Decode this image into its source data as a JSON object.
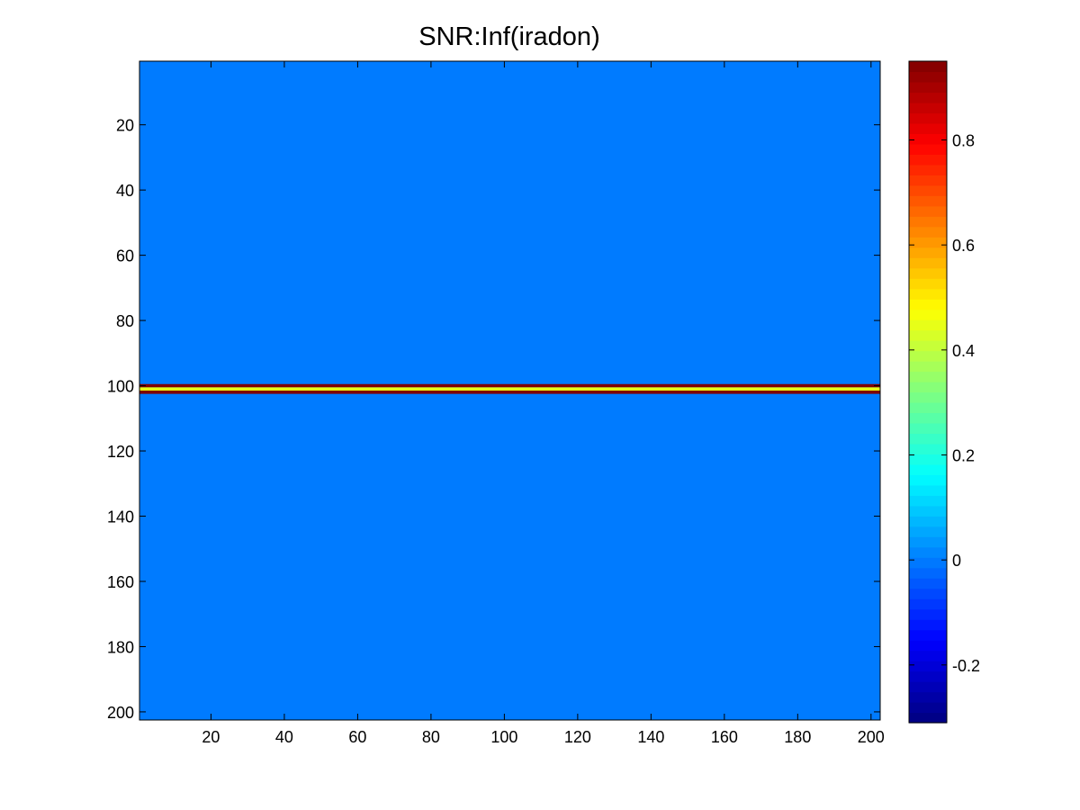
{
  "chart_data": {
    "type": "heatmap",
    "title": "SNR:Inf(iradon)",
    "xlabel": "",
    "ylabel": "",
    "xlim": [
      0.5,
      202.5
    ],
    "ylim": [
      202.5,
      0.5
    ],
    "x_ticks": [
      20,
      40,
      60,
      80,
      100,
      120,
      140,
      160,
      180,
      200
    ],
    "y_ticks": [
      20,
      40,
      60,
      80,
      100,
      120,
      140,
      160,
      180,
      200
    ],
    "grid": false,
    "background_value": 0.0,
    "bright_rows": [
      {
        "row": 100,
        "value": 0.95
      },
      {
        "row": 101,
        "value": 0.45
      },
      {
        "row": 102,
        "value": 0.95
      }
    ],
    "colorbar": {
      "colormap": "jet",
      "clim": [
        -0.31,
        0.95
      ],
      "ticks": [
        -0.2,
        0,
        0.2,
        0.4,
        0.6,
        0.8
      ],
      "tick_labels": [
        "-0.2",
        "0",
        "0.2",
        "0.4",
        "0.6",
        "0.8"
      ]
    }
  }
}
